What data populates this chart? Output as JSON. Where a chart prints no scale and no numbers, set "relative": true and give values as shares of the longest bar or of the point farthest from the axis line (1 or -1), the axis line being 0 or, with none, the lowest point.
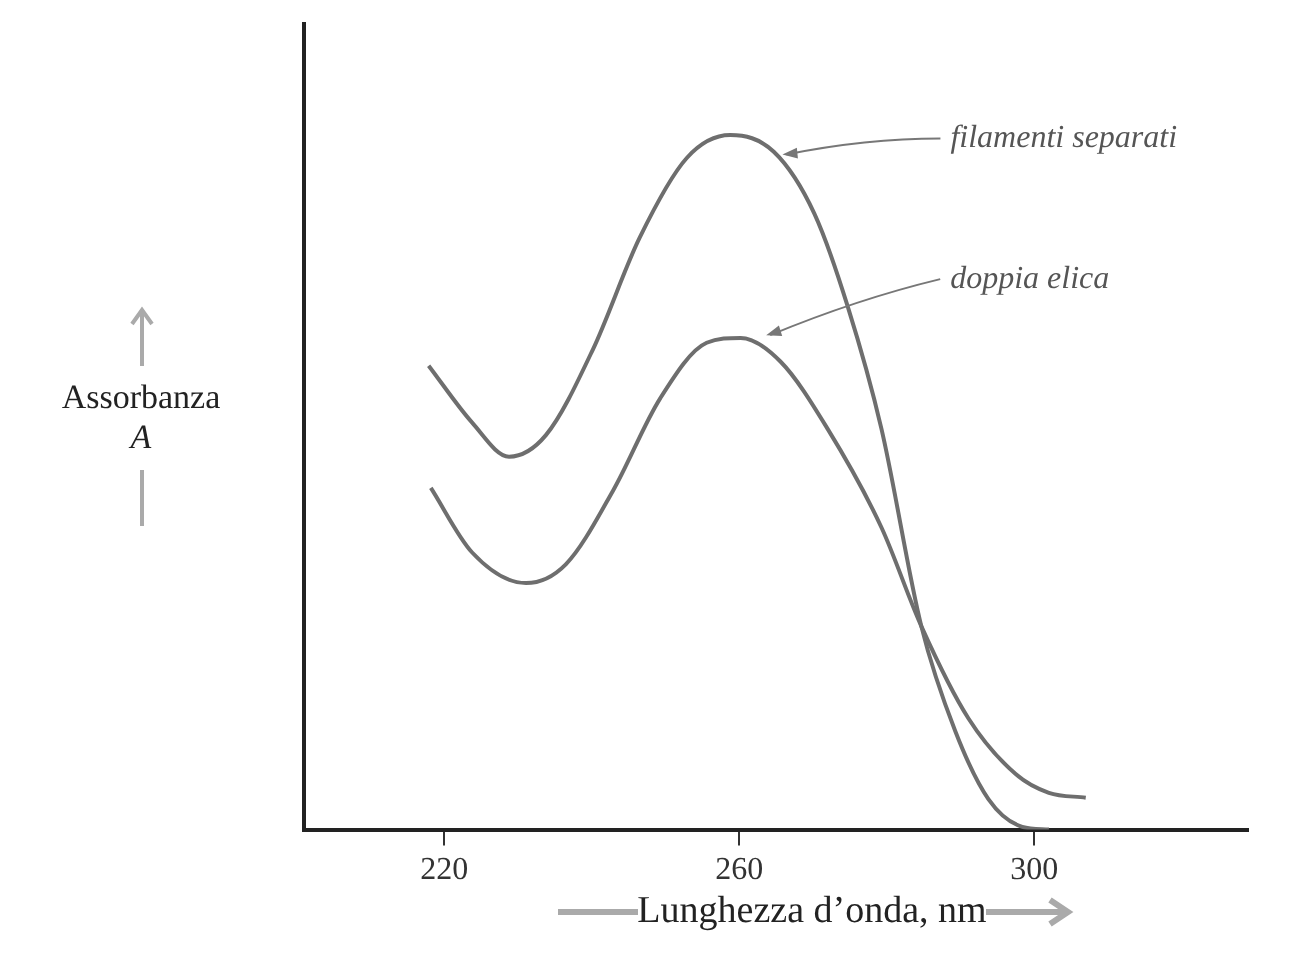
{
  "chart_data": {
    "type": "line",
    "relative": true,
    "xlabel": "Lunghezza d’onda, nm",
    "ylabel": "Assorbanza A",
    "xlim": [
      201,
      329
    ],
    "xticks": [
      220,
      260,
      300
    ],
    "grid": false,
    "legend": false,
    "marker": "none",
    "line_style": "solid",
    "series": [
      {
        "color": "#6e6e6e",
        "x": [
          217.9,
          223.8,
          228.8,
          233.8,
          240.2,
          246.5,
          252.9,
          258.8,
          264.7,
          270.2,
          274.7,
          279.3,
          284.7,
          289.3,
          293.8,
          298.4,
          302
        ],
        "values": [
          0.668,
          0.586,
          0.537,
          0.568,
          0.692,
          0.852,
          0.967,
          1.0,
          0.976,
          0.887,
          0.754,
          0.577,
          0.293,
          0.142,
          0.044,
          0.004,
          0
        ]
      },
      {
        "color": "#6e6e6e",
        "x": [
          218.2,
          223.8,
          231.1,
          236.5,
          242.9,
          249.3,
          255.6,
          260.2,
          265.6,
          272,
          279.3,
          284.7,
          291.1,
          297.5,
          302,
          307
        ],
        "values": [
          0.492,
          0.399,
          0.355,
          0.382,
          0.488,
          0.621,
          0.701,
          0.708,
          0.674,
          0.577,
          0.435,
          0.293,
          0.16,
          0.08,
          0.053,
          0.046
        ]
      }
    ],
    "annotations": [
      {
        "text": "filamenti separati",
        "x": 265.6,
        "y": 0.972
      },
      {
        "text": "doppia elica",
        "x": 263.4,
        "y": 0.712
      }
    ]
  }
}
